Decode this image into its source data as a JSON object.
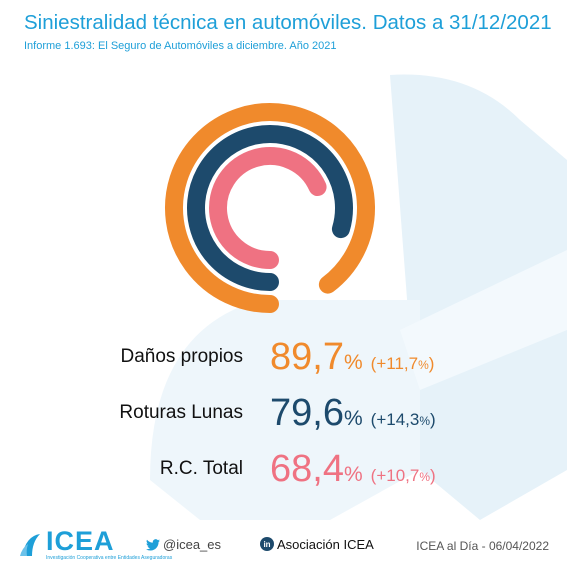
{
  "header": {
    "title": "Siniestralidad técnica en automóviles. Datos a 31/12/2021",
    "subtitle": "Informe 1.693: El Seguro de Automóviles a diciembre. Año 2021"
  },
  "chart_data": {
    "type": "radial-bar",
    "max": 100,
    "series": [
      {
        "name": "Daños propios",
        "value": 89.7,
        "value_text": "89,7",
        "unit": "%",
        "change_text": "+11,7",
        "color": "#f08a2c"
      },
      {
        "name": "Roturas Lunas",
        "value": 79.6,
        "value_text": "79,6",
        "unit": "%",
        "change_text": "+14,3",
        "color": "#1d4a6c"
      },
      {
        "name": "R.C. Total",
        "value": 68.4,
        "value_text": "68,4",
        "unit": "%",
        "change_text": "+10,7",
        "color": "#ef7282"
      }
    ]
  },
  "footer": {
    "logo_text": "ICEA",
    "logo_tagline": "Investigación Cooperativa entre Entidades Aseguradoras",
    "twitter": "@icea_es",
    "linkedin": "Asociación ICEA",
    "date_stamp": "ICEA al Día - 06/04/2022"
  },
  "icons": {
    "twitter": "twitter-bird-icon",
    "linkedin": "linkedin-icon",
    "logo": "icea-wave-logo"
  },
  "colors": {
    "accent": "#1e9fd8"
  }
}
